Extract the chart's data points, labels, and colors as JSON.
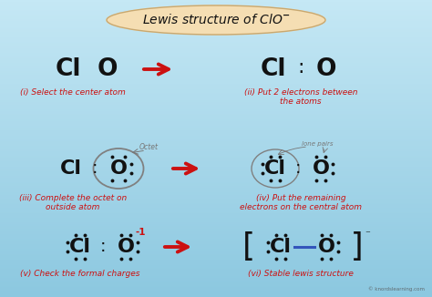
{
  "bg_color": "#a8d8ea",
  "title_bg": "#f5deb3",
  "title_border": "#c8a870",
  "red": "#cc1111",
  "black": "#111111",
  "gray": "#777777",
  "blue_bond": "#3355bb",
  "step1_label": "(i) Select the center atom",
  "step2_label": "(ii) Put 2 electrons between\nthe atoms",
  "step3_label": "(iii) Complete the octet on\noutside atom",
  "step4_label": "(iv) Put the remaining\nelectrons on the central atom",
  "step5_label": "(v) Check the formal charges",
  "step6_label": "(vi) Stable lewis structure",
  "watermark": "© knordslearning.com"
}
